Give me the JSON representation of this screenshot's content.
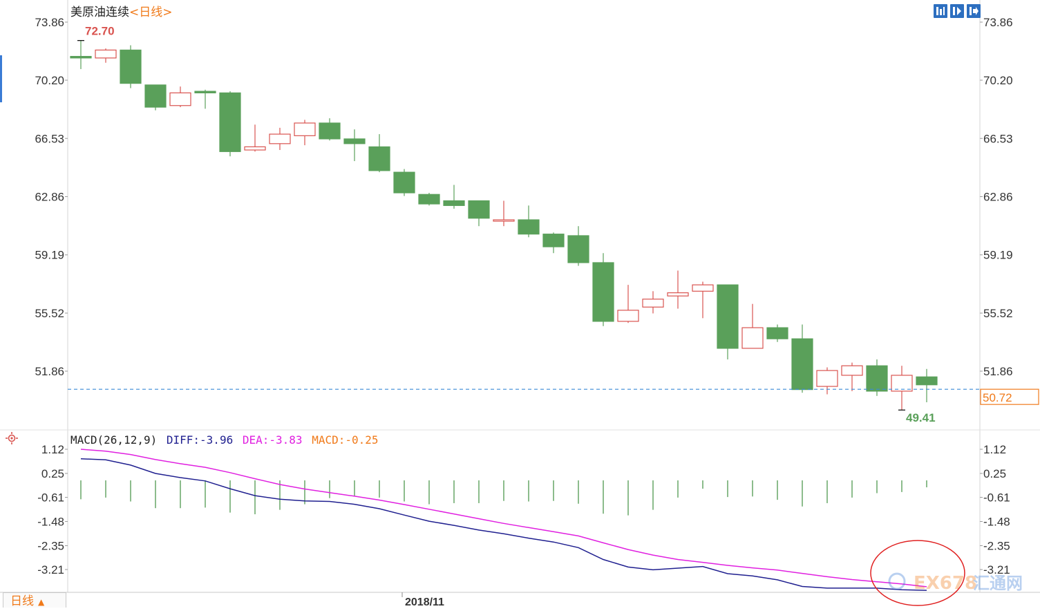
{
  "header": {
    "instrument": "美原油连续",
    "period_open": "<",
    "period_label": "日线",
    "period_close": ">"
  },
  "toolbar": [
    {
      "name": "layout-icon"
    },
    {
      "name": "chart-type-icon"
    },
    {
      "name": "expand-icon"
    }
  ],
  "price_panel": {
    "y_ticks": [
      "73.86",
      "70.20",
      "66.53",
      "62.86",
      "59.19",
      "55.52",
      "51.86"
    ],
    "high_label": "72.70",
    "low_label": "49.41",
    "last_price": "50.72",
    "up_color": "#d9534f",
    "down_color": "#5aa05a"
  },
  "macd_panel": {
    "label": "MACD(26,12,9)",
    "diff_text": "DIFF:-3.96",
    "dea_text": "DEA:-3.83",
    "macd_text": "MACD:-0.25",
    "y_ticks": [
      "1.12",
      "0.25",
      "-0.61",
      "-1.48",
      "-2.35",
      "-3.21"
    ],
    "diff_color": "#1f1f8f",
    "dea_color": "#e020e0",
    "macd_color": "#f07a1a"
  },
  "x_axis": {
    "date_label": "2018/11"
  },
  "period_tab": {
    "label": "日线",
    "arrow": "▲"
  },
  "watermark": {
    "brand": "EX678",
    "brand_cn": "汇通网"
  },
  "chart_data": [
    {
      "type": "candlestick",
      "ylim": [
        48.5,
        74.6
      ],
      "y_ticks": [
        73.86,
        70.2,
        66.53,
        62.86,
        59.19,
        55.52,
        51.86
      ],
      "candles": [
        {
          "o": 71.7,
          "h": 72.7,
          "l": 70.9,
          "c": 71.6
        },
        {
          "o": 71.6,
          "h": 72.2,
          "l": 71.3,
          "c": 72.1
        },
        {
          "o": 72.1,
          "h": 72.4,
          "l": 69.7,
          "c": 70.0
        },
        {
          "o": 69.9,
          "h": 69.9,
          "l": 68.3,
          "c": 68.5
        },
        {
          "o": 68.6,
          "h": 69.8,
          "l": 68.5,
          "c": 69.4
        },
        {
          "o": 69.5,
          "h": 69.6,
          "l": 68.4,
          "c": 69.4
        },
        {
          "o": 69.4,
          "h": 69.5,
          "l": 65.4,
          "c": 65.7
        },
        {
          "o": 65.8,
          "h": 67.4,
          "l": 65.7,
          "c": 66.0
        },
        {
          "o": 66.2,
          "h": 67.2,
          "l": 65.8,
          "c": 66.8
        },
        {
          "o": 66.7,
          "h": 67.7,
          "l": 66.1,
          "c": 67.5
        },
        {
          "o": 67.5,
          "h": 67.8,
          "l": 66.4,
          "c": 66.5
        },
        {
          "o": 66.5,
          "h": 67.1,
          "l": 65.1,
          "c": 66.2
        },
        {
          "o": 66.0,
          "h": 66.8,
          "l": 64.4,
          "c": 64.5
        },
        {
          "o": 64.4,
          "h": 64.6,
          "l": 62.9,
          "c": 63.1
        },
        {
          "o": 63.0,
          "h": 63.1,
          "l": 62.3,
          "c": 62.4
        },
        {
          "o": 62.6,
          "h": 63.6,
          "l": 62.1,
          "c": 62.3
        },
        {
          "o": 62.6,
          "h": 62.6,
          "l": 61.0,
          "c": 61.5
        },
        {
          "o": 61.4,
          "h": 62.6,
          "l": 61.0,
          "c": 61.4
        },
        {
          "o": 61.4,
          "h": 62.3,
          "l": 60.3,
          "c": 60.5
        },
        {
          "o": 60.5,
          "h": 60.6,
          "l": 59.3,
          "c": 59.7
        },
        {
          "o": 60.4,
          "h": 61.0,
          "l": 58.5,
          "c": 58.7
        },
        {
          "o": 58.7,
          "h": 59.3,
          "l": 54.7,
          "c": 55.0
        },
        {
          "o": 55.0,
          "h": 57.3,
          "l": 54.9,
          "c": 55.7
        },
        {
          "o": 55.9,
          "h": 56.9,
          "l": 55.5,
          "c": 56.4
        },
        {
          "o": 56.6,
          "h": 58.2,
          "l": 55.8,
          "c": 56.8
        },
        {
          "o": 56.9,
          "h": 57.5,
          "l": 55.2,
          "c": 57.3
        },
        {
          "o": 57.3,
          "h": 57.3,
          "l": 52.6,
          "c": 53.3
        },
        {
          "o": 53.3,
          "h": 56.1,
          "l": 53.3,
          "c": 54.6
        },
        {
          "o": 54.6,
          "h": 54.8,
          "l": 53.7,
          "c": 53.9
        },
        {
          "o": 53.9,
          "h": 54.8,
          "l": 50.5,
          "c": 50.7
        },
        {
          "o": 50.9,
          "h": 52.1,
          "l": 50.4,
          "c": 51.9
        },
        {
          "o": 51.6,
          "h": 52.4,
          "l": 50.6,
          "c": 52.2
        },
        {
          "o": 52.2,
          "h": 52.6,
          "l": 50.3,
          "c": 50.6
        },
        {
          "o": 50.6,
          "h": 52.2,
          "l": 49.41,
          "c": 51.6
        },
        {
          "o": 51.5,
          "h": 52.0,
          "l": 49.9,
          "c": 51.0
        }
      ],
      "reference_line": 50.72
    },
    {
      "type": "line",
      "ylim": [
        -4.1,
        1.12
      ],
      "y_ticks": [
        1.12,
        0.25,
        -0.61,
        -1.48,
        -2.35,
        -3.21
      ],
      "series": [
        {
          "name": "DIFF",
          "values": [
            0.78,
            0.74,
            0.55,
            0.25,
            0.1,
            -0.02,
            -0.3,
            -0.55,
            -0.68,
            -0.74,
            -0.76,
            -0.86,
            -1.02,
            -1.25,
            -1.47,
            -1.62,
            -1.79,
            -1.92,
            -2.08,
            -2.22,
            -2.42,
            -2.85,
            -3.12,
            -3.22,
            -3.16,
            -3.1,
            -3.36,
            -3.44,
            -3.58,
            -3.82,
            -3.88,
            -3.88,
            -3.88,
            -3.94,
            -3.96
          ]
        },
        {
          "name": "DEA",
          "values": [
            1.12,
            1.05,
            0.93,
            0.75,
            0.6,
            0.47,
            0.28,
            0.06,
            -0.15,
            -0.31,
            -0.44,
            -0.57,
            -0.71,
            -0.87,
            -1.04,
            -1.21,
            -1.38,
            -1.55,
            -1.7,
            -1.85,
            -2.0,
            -2.25,
            -2.49,
            -2.69,
            -2.85,
            -2.95,
            -3.06,
            -3.15,
            -3.23,
            -3.35,
            -3.47,
            -3.57,
            -3.65,
            -3.73,
            -3.83
          ]
        },
        {
          "name": "MACD",
          "values": [
            -0.68,
            -0.62,
            -0.76,
            -1.0,
            -1.0,
            -0.98,
            -1.16,
            -1.22,
            -1.06,
            -0.86,
            -0.64,
            -0.58,
            -0.62,
            -0.76,
            -0.86,
            -0.82,
            -0.82,
            -0.74,
            -0.76,
            -0.74,
            -0.84,
            -1.2,
            -1.26,
            -1.06,
            -0.62,
            -0.3,
            -0.6,
            -0.58,
            -0.7,
            -0.94,
            -0.82,
            -0.62,
            -0.46,
            -0.42,
            -0.25
          ]
        }
      ]
    }
  ]
}
